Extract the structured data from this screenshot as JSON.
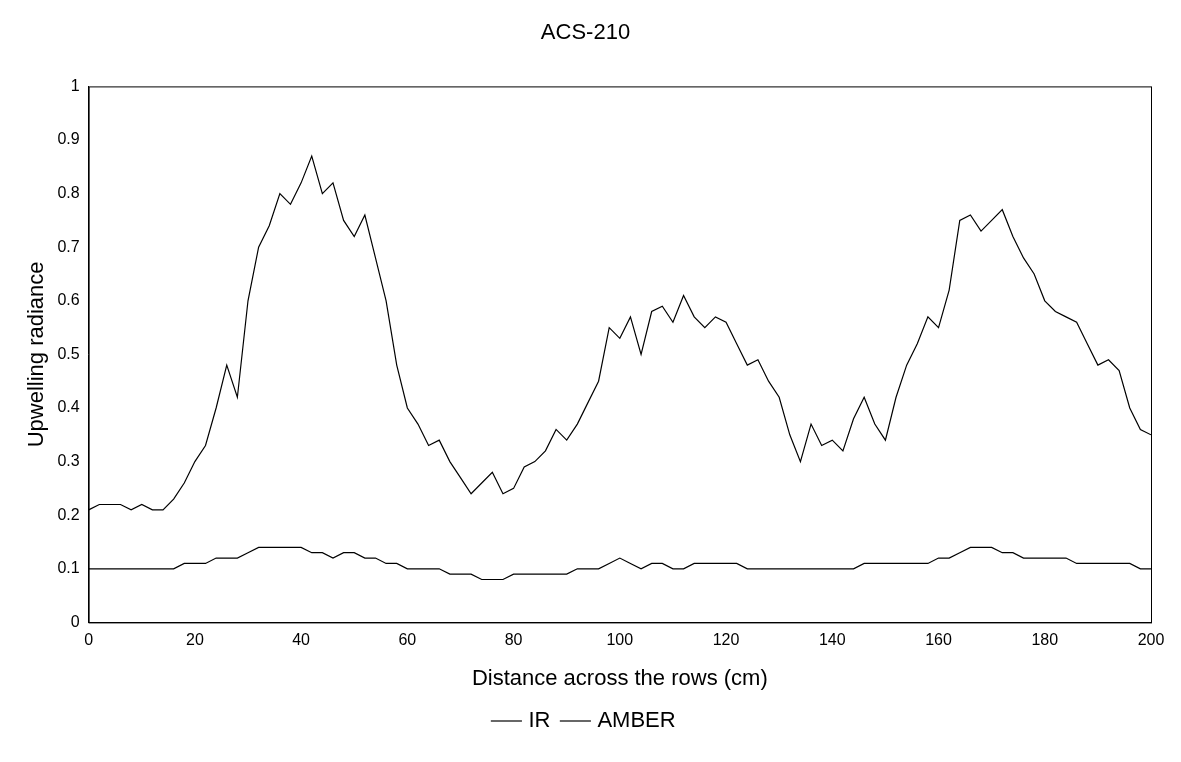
{
  "chart_data": {
    "type": "line",
    "title": "ACS-210",
    "x_label": "Distance across the rows (cm)",
    "y_label": "Upwelling radiance",
    "x": [
      0,
      2,
      4,
      6,
      8,
      10,
      12,
      14,
      16,
      18,
      20,
      22,
      24,
      26,
      28,
      30,
      32,
      34,
      36,
      38,
      40,
      42,
      44,
      46,
      48,
      50,
      52,
      54,
      56,
      58,
      60,
      62,
      64,
      66,
      68,
      70,
      72,
      74,
      76,
      78,
      80,
      82,
      84,
      86,
      88,
      90,
      92,
      94,
      96,
      98,
      100,
      102,
      104,
      106,
      108,
      110,
      112,
      114,
      116,
      118,
      120,
      122,
      124,
      126,
      128,
      130,
      132,
      134,
      136,
      138,
      140,
      142,
      144,
      146,
      148,
      150,
      152,
      154,
      156,
      158,
      160,
      162,
      164,
      166,
      168,
      170,
      172,
      174,
      176,
      178,
      180,
      182,
      184,
      186,
      188,
      190,
      192,
      194,
      196,
      198,
      200
    ],
    "series": [
      {
        "name": "IR",
        "color": "#000000",
        "line_style": "solid",
        "values": [
          0.21,
          0.22,
          0.22,
          0.22,
          0.21,
          0.22,
          0.21,
          0.21,
          0.23,
          0.26,
          0.3,
          0.33,
          0.4,
          0.48,
          0.42,
          0.6,
          0.7,
          0.74,
          0.8,
          0.78,
          0.82,
          0.87,
          0.8,
          0.82,
          0.75,
          0.72,
          0.76,
          0.68,
          0.6,
          0.48,
          0.4,
          0.37,
          0.33,
          0.34,
          0.3,
          0.27,
          0.24,
          0.26,
          0.28,
          0.24,
          0.25,
          0.29,
          0.3,
          0.32,
          0.36,
          0.34,
          0.37,
          0.41,
          0.45,
          0.55,
          0.53,
          0.57,
          0.5,
          0.58,
          0.59,
          0.56,
          0.61,
          0.57,
          0.55,
          0.57,
          0.56,
          0.52,
          0.48,
          0.49,
          0.45,
          0.42,
          0.35,
          0.3,
          0.37,
          0.33,
          0.34,
          0.32,
          0.38,
          0.42,
          0.37,
          0.34,
          0.42,
          0.48,
          0.52,
          0.57,
          0.55,
          0.62,
          0.75,
          0.76,
          0.73,
          0.75,
          0.77,
          0.72,
          0.68,
          0.65,
          0.6,
          0.58,
          0.57,
          0.56,
          0.52,
          0.48,
          0.49,
          0.47,
          0.4,
          0.36,
          0.35
        ]
      },
      {
        "name": "AMBER",
        "color": "#000000",
        "line_style": "solid",
        "values": [
          0.1,
          0.1,
          0.1,
          0.1,
          0.1,
          0.1,
          0.1,
          0.1,
          0.1,
          0.11,
          0.11,
          0.11,
          0.12,
          0.12,
          0.12,
          0.13,
          0.14,
          0.14,
          0.14,
          0.14,
          0.14,
          0.13,
          0.13,
          0.12,
          0.13,
          0.13,
          0.12,
          0.12,
          0.11,
          0.11,
          0.1,
          0.1,
          0.1,
          0.1,
          0.09,
          0.09,
          0.09,
          0.08,
          0.08,
          0.08,
          0.09,
          0.09,
          0.09,
          0.09,
          0.09,
          0.09,
          0.1,
          0.1,
          0.1,
          0.11,
          0.12,
          0.11,
          0.1,
          0.11,
          0.11,
          0.1,
          0.1,
          0.11,
          0.11,
          0.11,
          0.11,
          0.11,
          0.1,
          0.1,
          0.1,
          0.1,
          0.1,
          0.1,
          0.1,
          0.1,
          0.1,
          0.1,
          0.1,
          0.11,
          0.11,
          0.11,
          0.11,
          0.11,
          0.11,
          0.11,
          0.12,
          0.12,
          0.13,
          0.14,
          0.14,
          0.14,
          0.13,
          0.13,
          0.12,
          0.12,
          0.12,
          0.12,
          0.12,
          0.11,
          0.11,
          0.11,
          0.11,
          0.11,
          0.11,
          0.1,
          0.1
        ]
      }
    ],
    "xlim": [
      0,
      200
    ],
    "xticks": [
      0,
      20,
      40,
      60,
      80,
      100,
      120,
      140,
      160,
      180,
      200
    ],
    "ylim": [
      0,
      1
    ],
    "yticks": [
      0,
      0.1,
      0.2,
      0.3,
      0.4,
      0.5,
      0.6,
      0.7,
      0.8,
      0.9,
      1
    ],
    "grid": false,
    "legend": "bottom"
  }
}
